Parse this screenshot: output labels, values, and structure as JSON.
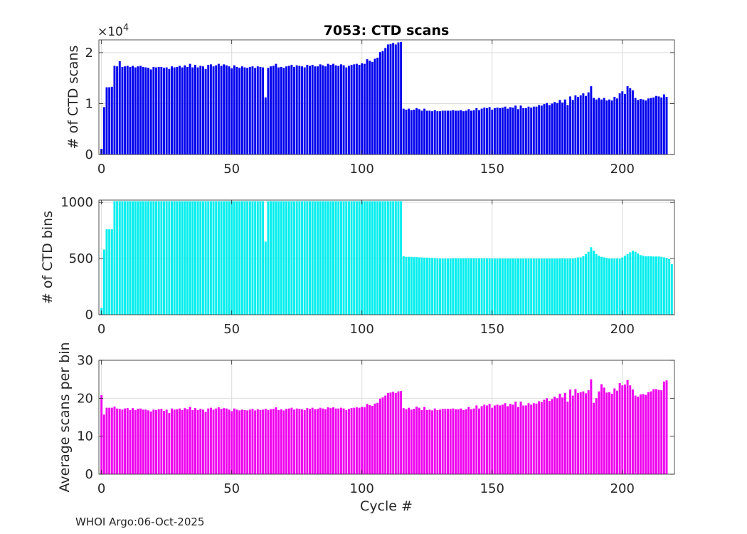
{
  "figure": {
    "title": "7053: CTD scans",
    "xlabel": "Cycle #",
    "footer": "WHOI Argo:06-Oct-2025"
  },
  "chart_data": [
    {
      "type": "bar",
      "ylabel": "# of CTD scans",
      "color": "#0000ee",
      "xlim": [
        -1,
        220
      ],
      "ylim": [
        0,
        22500
      ],
      "yticks": [
        0,
        10000,
        20000
      ],
      "ytick_labels": [
        "0",
        "1",
        "2"
      ],
      "exponent_label": "×10^4",
      "xticks": [
        0,
        50,
        100,
        150,
        200
      ],
      "grid": true,
      "x_start": 0,
      "values": [
        1100,
        9300,
        13200,
        13200,
        13300,
        17400,
        17300,
        18300,
        17200,
        17300,
        17400,
        17200,
        17400,
        17100,
        17300,
        17400,
        17200,
        17100,
        17000,
        16700,
        17200,
        17100,
        17200,
        17200,
        17000,
        17100,
        16800,
        17300,
        17100,
        17200,
        17400,
        17100,
        17500,
        17200,
        17800,
        17100,
        17600,
        17100,
        17400,
        17300,
        16800,
        17600,
        17700,
        17300,
        17500,
        17800,
        17400,
        17700,
        17500,
        17300,
        16900,
        17500,
        17200,
        17000,
        17300,
        17100,
        17000,
        17200,
        17300,
        17000,
        17300,
        17200,
        17100,
        11200,
        17000,
        17300,
        17400,
        17800,
        17100,
        17200,
        17000,
        17300,
        17400,
        17600,
        17200,
        17500,
        17400,
        17300,
        17100,
        17600,
        17400,
        17600,
        17300,
        17300,
        17700,
        17500,
        17300,
        17800,
        17600,
        17800,
        17500,
        17400,
        17700,
        17500,
        17100,
        17400,
        17600,
        17700,
        17800,
        17600,
        17900,
        17800,
        18700,
        18400,
        18200,
        18800,
        19000,
        20100,
        20300,
        20900,
        21600,
        21700,
        21900,
        21600,
        22000,
        22100,
        9000,
        8800,
        9000,
        8700,
        8800,
        9100,
        8900,
        8600,
        9000,
        8600,
        8600,
        8500,
        8700,
        8500,
        8500,
        8600,
        8600,
        8600,
        8600,
        8700,
        8600,
        8600,
        8700,
        8500,
        8600,
        8900,
        8600,
        8700,
        9100,
        8700,
        9000,
        9200,
        9100,
        9300,
        8800,
        9100,
        9200,
        9100,
        9200,
        9400,
        9000,
        9300,
        9200,
        9600,
        8900,
        9600,
        9100,
        9100,
        9400,
        9200,
        9400,
        9400,
        9700,
        9600,
        9900,
        10100,
        9700,
        10000,
        10300,
        10100,
        10700,
        10200,
        10800,
        9700,
        11400,
        10700,
        11600,
        11300,
        11600,
        12000,
        11500,
        12200,
        13400,
        11100,
        10800,
        11100,
        10800,
        11100,
        10600,
        10800,
        10600,
        11300,
        11000,
        12000,
        12400,
        11900,
        13400,
        13000,
        12600,
        11100,
        10700,
        10900,
        10800,
        10600,
        11000,
        11100,
        11200,
        11500,
        11400,
        11200,
        11800,
        11300
      ]
    },
    {
      "type": "bar",
      "ylabel": "# of CTD bins",
      "color": "#00eeee",
      "xlim": [
        -1,
        220
      ],
      "ylim": [
        0,
        1020
      ],
      "yticks": [
        0,
        500,
        1000
      ],
      "ytick_labels": [
        "0",
        "500",
        "1000"
      ],
      "xticks": [
        0,
        50,
        100,
        150,
        200
      ],
      "grid": true,
      "x_start": 0,
      "values": [
        60,
        580,
        760,
        760,
        760,
        1010,
        1010,
        1010,
        1010,
        1010,
        1010,
        1010,
        1010,
        1010,
        1010,
        1010,
        1010,
        1010,
        1010,
        1010,
        1010,
        1010,
        1010,
        1010,
        1010,
        1010,
        1010,
        1010,
        1010,
        1010,
        1010,
        1010,
        1010,
        1010,
        1010,
        1010,
        1010,
        1010,
        1010,
        1010,
        1010,
        1010,
        1010,
        1010,
        1010,
        1010,
        1010,
        1010,
        1010,
        1010,
        1010,
        1010,
        1010,
        1010,
        1010,
        1010,
        1010,
        1010,
        1010,
        1010,
        1010,
        1010,
        1010,
        650,
        1010,
        1010,
        1010,
        1010,
        1010,
        1010,
        1010,
        1010,
        1010,
        1010,
        1010,
        1010,
        1010,
        1010,
        1010,
        1010,
        1010,
        1010,
        1010,
        1010,
        1010,
        1010,
        1010,
        1010,
        1010,
        1010,
        1010,
        1010,
        1010,
        1010,
        1010,
        1010,
        1010,
        1010,
        1010,
        1010,
        1010,
        1010,
        1010,
        1010,
        1010,
        1010,
        1010,
        1010,
        1010,
        1010,
        1010,
        1010,
        1010,
        1010,
        1010,
        1010,
        520,
        515,
        515,
        515,
        512,
        512,
        510,
        510,
        508,
        508,
        506,
        505,
        504,
        502,
        500,
        500,
        500,
        500,
        500,
        502,
        502,
        502,
        502,
        503,
        503,
        503,
        503,
        503,
        503,
        502,
        502,
        502,
        502,
        502,
        500,
        500,
        500,
        500,
        500,
        500,
        500,
        500,
        500,
        500,
        500,
        500,
        500,
        500,
        500,
        500,
        500,
        500,
        500,
        500,
        500,
        500,
        500,
        500,
        500,
        500,
        500,
        502,
        500,
        500,
        500,
        500,
        505,
        510,
        510,
        520,
        540,
        560,
        600,
        570,
        540,
        525,
        515,
        510,
        505,
        500,
        500,
        500,
        500,
        500,
        510,
        525,
        540,
        555,
        570,
        560,
        545,
        530,
        525,
        520,
        520,
        520,
        518,
        518,
        518,
        515,
        510,
        505,
        495,
        450
      ]
    },
    {
      "type": "bar",
      "ylabel": "Average scans per bin",
      "color": "#ee00ee",
      "xlim": [
        -1,
        220
      ],
      "ylim": [
        0,
        30
      ],
      "yticks": [
        0,
        10,
        20,
        30
      ],
      "ytick_labels": [
        "0",
        "10",
        "20",
        "30"
      ],
      "xticks": [
        0,
        50,
        100,
        150,
        200
      ],
      "grid": true,
      "x_start": 0,
      "values": [
        20.8,
        15.7,
        17.5,
        17.5,
        17.5,
        17.8,
        17.3,
        17.2,
        17.0,
        17.3,
        17.4,
        16.9,
        17.4,
        16.9,
        17.2,
        17.3,
        17.0,
        17.0,
        16.8,
        16.5,
        17.0,
        16.9,
        17.1,
        17.2,
        16.7,
        17.0,
        16.1,
        17.3,
        17.0,
        17.1,
        17.3,
        16.9,
        17.4,
        17.1,
        17.7,
        16.9,
        17.4,
        16.9,
        17.2,
        17.0,
        16.4,
        17.3,
        17.5,
        17.0,
        17.3,
        17.6,
        17.2,
        17.4,
        17.3,
        17.0,
        16.6,
        17.3,
        17.0,
        16.8,
        17.0,
        16.9,
        16.8,
        17.0,
        17.2,
        16.8,
        17.1,
        16.9,
        17.0,
        17.2,
        16.9,
        17.1,
        17.2,
        17.6,
        16.9,
        17.1,
        16.8,
        17.2,
        17.3,
        17.5,
        17.0,
        17.3,
        17.2,
        17.1,
        16.9,
        17.4,
        17.2,
        17.5,
        17.1,
        17.2,
        17.5,
        17.3,
        17.1,
        17.6,
        17.4,
        17.6,
        17.3,
        17.3,
        17.5,
        17.3,
        16.9,
        17.2,
        17.4,
        17.5,
        17.6,
        17.5,
        17.7,
        17.6,
        18.5,
        18.2,
        18.0,
        18.6,
        18.8,
        19.9,
        20.2,
        20.7,
        21.4,
        21.5,
        21.7,
        21.4,
        21.8,
        21.9,
        17.4,
        17.1,
        17.5,
        17.0,
        17.2,
        17.8,
        17.5,
        16.9,
        17.7,
        16.9,
        17.0,
        16.8,
        17.3,
        16.9,
        17.0,
        17.2,
        17.2,
        17.2,
        17.2,
        17.3,
        17.1,
        17.1,
        17.3,
        16.9,
        17.1,
        17.7,
        17.1,
        17.3,
        18.1,
        17.3,
        17.9,
        18.3,
        18.1,
        18.5,
        17.5,
        18.1,
        18.3,
        18.1,
        18.3,
        18.7,
        17.9,
        18.5,
        18.3,
        19.1,
        17.7,
        19.1,
        18.1,
        18.1,
        18.7,
        18.3,
        18.7,
        18.6,
        19.2,
        19.0,
        19.6,
        20.0,
        19.3,
        19.8,
        20.4,
        20.0,
        21.2,
        20.2,
        21.4,
        19.1,
        22.3,
        20.7,
        22.4,
        21.4,
        21.6,
        21.8,
        21.3,
        22.1,
        25.0,
        18.8,
        20.0,
        21.8,
        23.7,
        22.8,
        21.5,
        21.6,
        21.2,
        22.6,
        22.0,
        24.0,
        23.4,
        23.6,
        24.8,
        23.4,
        22.3,
        20.7,
        20.4,
        21.0,
        21.1,
        20.9,
        21.6,
        21.8,
        22.4,
        22.4,
        22.2,
        22.1,
        24.4,
        24.7
      ]
    }
  ]
}
